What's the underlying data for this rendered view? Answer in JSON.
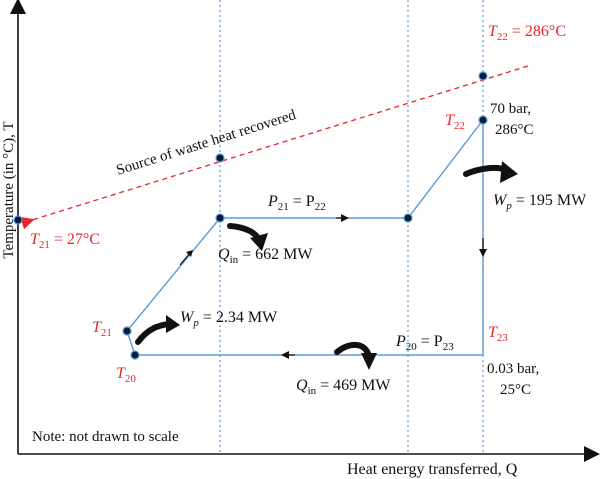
{
  "axes": {
    "y_label": "Temperature (in °C), T",
    "x_label": "Heat energy transferred, Q"
  },
  "note": "Note: not drawn to scale",
  "waste_heat_label": "Source of waste heat recovered",
  "states": {
    "t21_top": {
      "sym": "T",
      "sub": "22",
      "rest": " = 286°C"
    },
    "t21_left": {
      "sym": "T",
      "sub": "21",
      "rest": " = 27°C"
    },
    "t22": {
      "sym": "T",
      "sub": "22"
    },
    "t21": {
      "sym": "T",
      "sub": "21"
    },
    "t20": {
      "sym": "T",
      "sub": "20"
    },
    "t23": {
      "sym": "T",
      "sub": "23"
    }
  },
  "conditions": {
    "high": {
      "line1": "70 bar,",
      "line2": "286°C"
    },
    "low": {
      "line1": "0.03 bar,",
      "line2": "25°C"
    }
  },
  "pressures": {
    "upper": {
      "p": "P",
      "s1": "21",
      "eq": " = P",
      "s2": "22"
    },
    "lower": {
      "p": "P",
      "s1": "20",
      "eq": " = P",
      "s2": "23"
    }
  },
  "flows": {
    "wp_turbine": {
      "w": "W",
      "sub": "p",
      "rest": " = 195 MW"
    },
    "wp_pump": {
      "w": "W",
      "sub": "p",
      "rest": " = 2.34 MW"
    },
    "qin_top": {
      "q": "Q",
      "sub": "in",
      "rest": " = 662 MW"
    },
    "qin_bottom": {
      "q": "Q",
      "sub": "in",
      "rest": " = 469 MW"
    }
  },
  "colors": {
    "cycle": "#5b9bd5",
    "waste_heat": "#e8242b",
    "guides": "#5b9bd5",
    "points": "#0a1a3a",
    "label_red": "#e8242b",
    "text": "#111111"
  }
}
